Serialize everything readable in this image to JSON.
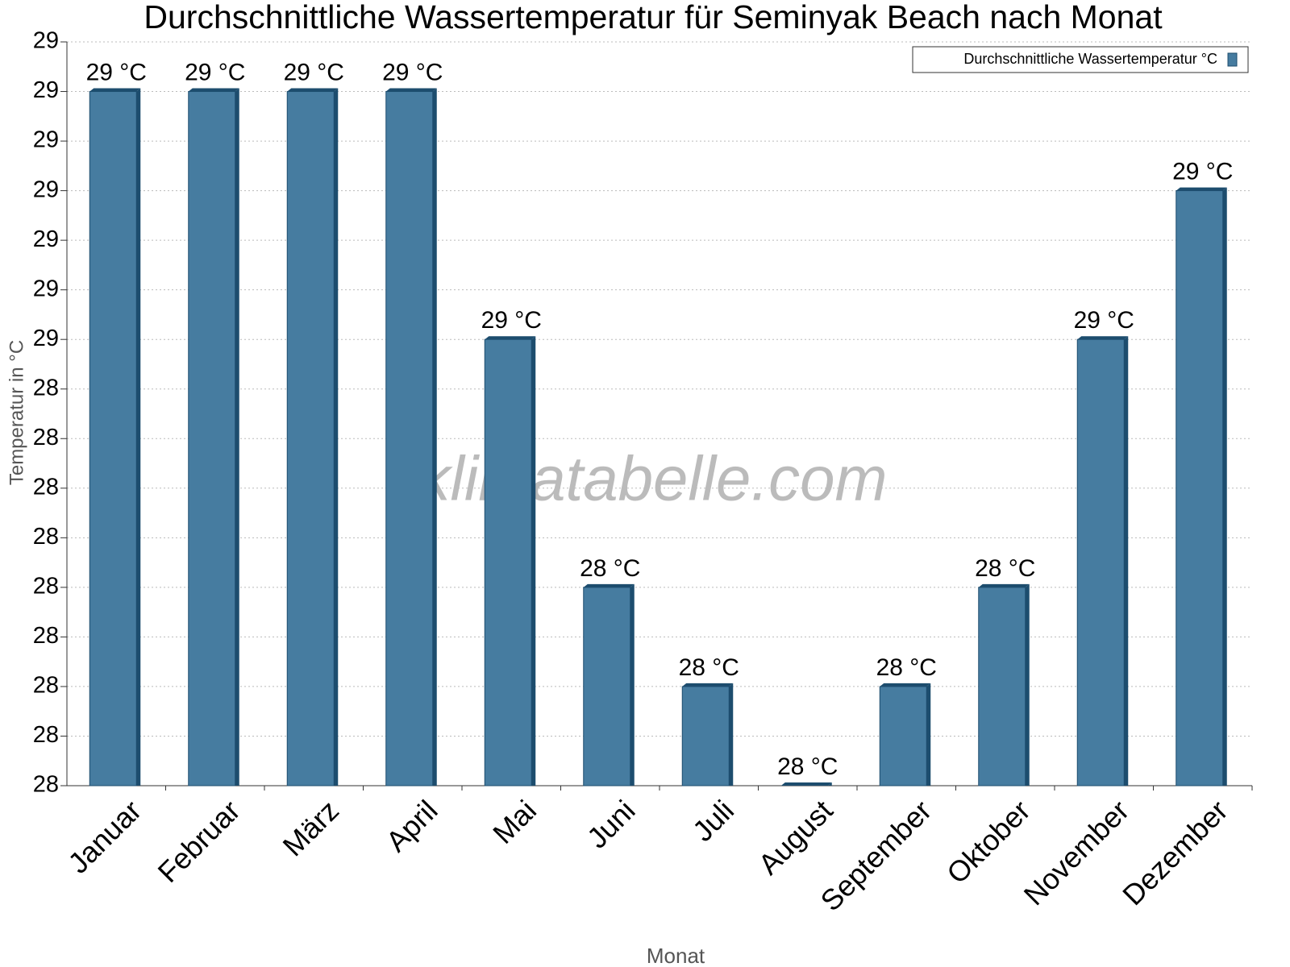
{
  "chart_data": {
    "type": "bar",
    "title": "Durchschnittliche Wassertemperatur für Seminyak Beach nach Monat",
    "x_label": "Monat",
    "y_label": "Temperatur in °C",
    "watermark": "klimatabelle.com",
    "categories": [
      "Januar",
      "Februar",
      "März",
      "April",
      "Mai",
      "Juni",
      "Juli",
      "August",
      "September",
      "Oktober",
      "November",
      "Dezember"
    ],
    "series": [
      {
        "name": "Durchschnittliche Wassertemperatur °C",
        "color": "#467ca0",
        "values": [
          29.0,
          29.0,
          29.0,
          29.0,
          28.5,
          28.0,
          27.8,
          27.6,
          27.8,
          28.0,
          28.5,
          28.8
        ],
        "value_labels": [
          "29 °C",
          "29 °C",
          "29 °C",
          "29 °C",
          "29 °C",
          "28 °C",
          "28 °C",
          "28 °C",
          "28 °C",
          "28 °C",
          "29 °C",
          "29 °C"
        ]
      }
    ],
    "ylim": [
      27.6,
      29.1
    ],
    "yticks": [
      {
        "value": 27.6,
        "label": "28"
      },
      {
        "value": 27.7,
        "label": "28"
      },
      {
        "value": 27.8,
        "label": "28"
      },
      {
        "value": 27.9,
        "label": "28"
      },
      {
        "value": 28.0,
        "label": "28"
      },
      {
        "value": 28.1,
        "label": "28"
      },
      {
        "value": 28.2,
        "label": "28"
      },
      {
        "value": 28.3,
        "label": "28"
      },
      {
        "value": 28.4,
        "label": "28"
      },
      {
        "value": 28.5,
        "label": "29"
      },
      {
        "value": 28.6,
        "label": "29"
      },
      {
        "value": 28.7,
        "label": "29"
      },
      {
        "value": 28.8,
        "label": "29"
      },
      {
        "value": 28.9,
        "label": "29"
      },
      {
        "value": 29.0,
        "label": "29"
      },
      {
        "value": 29.1,
        "label": "29"
      }
    ],
    "grid": true,
    "legend": "top-right"
  }
}
